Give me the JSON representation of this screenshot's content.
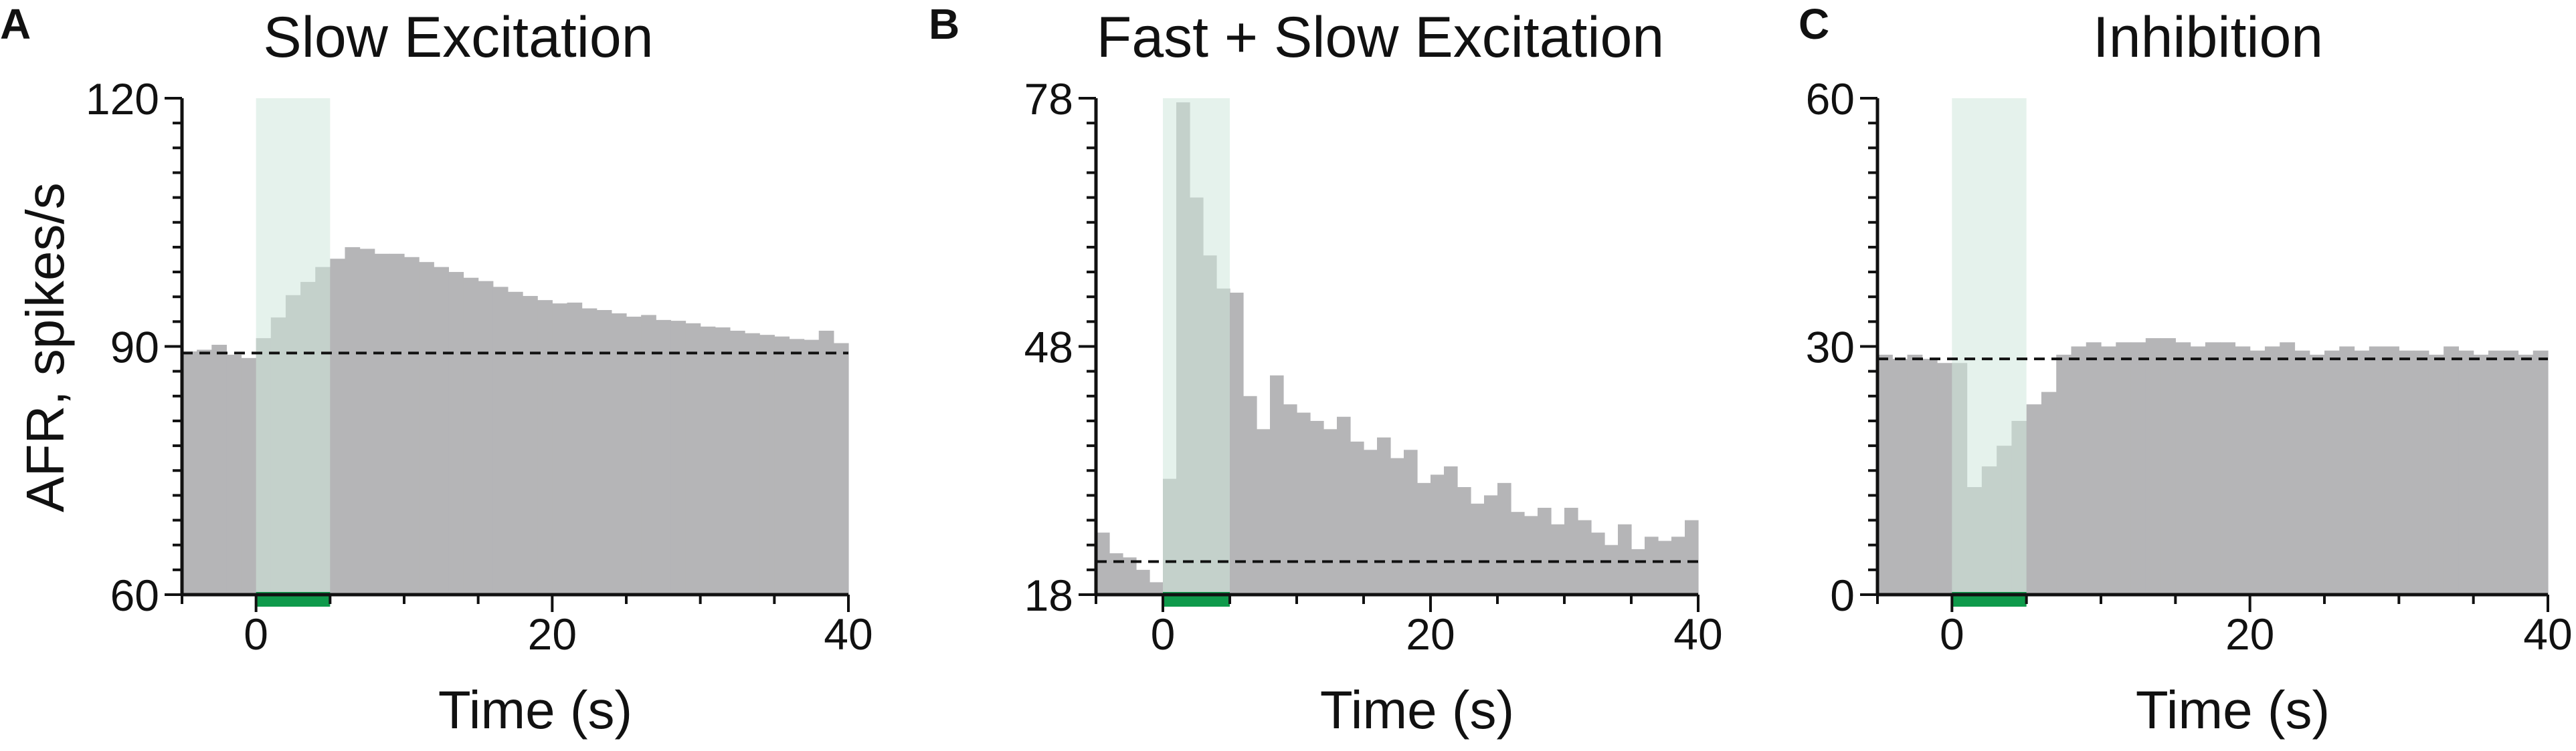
{
  "figure": {
    "shared_ylabel": "AFR, spikes/s",
    "colors": {
      "bars": "#b5b5b7",
      "stim_shade": "#cfe8dd",
      "stim_bar": "#0f9a4b",
      "baseline": "#111111",
      "axes": "#111111"
    }
  },
  "chart_data": [
    {
      "type": "bar",
      "panel": "A",
      "title": "Slow Excitation",
      "xlabel": "Time (s)",
      "ylabel": "AFR, spikes/s",
      "xlim": [
        -5,
        40
      ],
      "ylim": [
        60,
        120
      ],
      "xticks": [
        0,
        20,
        40
      ],
      "yticks": [
        60,
        90,
        120
      ],
      "bin_width": 1,
      "baseline": 89.2,
      "stimulus": [
        0,
        5
      ],
      "x": [
        -5,
        -4,
        -3,
        -2,
        -1,
        0,
        1,
        2,
        3,
        4,
        5,
        6,
        7,
        8,
        9,
        10,
        11,
        12,
        13,
        14,
        15,
        16,
        17,
        18,
        19,
        20,
        21,
        22,
        23,
        24,
        25,
        26,
        27,
        28,
        29,
        30,
        31,
        32,
        33,
        34,
        35,
        36,
        37,
        38,
        39
      ],
      "values": [
        89.4,
        89.6,
        90.2,
        89.0,
        88.6,
        91.0,
        93.5,
        96.2,
        97.8,
        99.6,
        100.6,
        102.0,
        101.8,
        101.2,
        101.2,
        100.8,
        100.2,
        99.6,
        99.0,
        98.3,
        97.9,
        97.2,
        96.6,
        96.1,
        95.6,
        95.2,
        95.3,
        94.6,
        94.4,
        94.0,
        93.6,
        93.8,
        93.2,
        93.1,
        92.8,
        92.4,
        92.3,
        91.9,
        91.6,
        91.4,
        91.2,
        90.9,
        90.8,
        91.9,
        90.4
      ]
    },
    {
      "type": "bar",
      "panel": "B",
      "title": "Fast + Slow Excitation",
      "xlabel": "Time (s)",
      "ylabel": "",
      "xlim": [
        -5,
        40
      ],
      "ylim": [
        18,
        78
      ],
      "xticks": [
        0,
        20,
        40
      ],
      "yticks": [
        18,
        48,
        78
      ],
      "bin_width": 1,
      "baseline": 22,
      "stimulus": [
        0,
        5
      ],
      "x": [
        -5,
        -4,
        -3,
        -2,
        -1,
        0,
        1,
        2,
        3,
        4,
        5,
        6,
        7,
        8,
        9,
        10,
        11,
        12,
        13,
        14,
        15,
        16,
        17,
        18,
        19,
        20,
        21,
        22,
        23,
        24,
        25,
        26,
        27,
        28,
        29,
        30,
        31,
        32,
        33,
        34,
        35,
        36,
        37,
        38,
        39
      ],
      "values": [
        25.5,
        23.0,
        22.5,
        21.0,
        19.5,
        32.0,
        77.5,
        66.0,
        59.0,
        55.0,
        54.5,
        42.0,
        38.0,
        44.5,
        41.0,
        40.0,
        39.0,
        38.0,
        39.5,
        36.5,
        35.5,
        37.0,
        34.5,
        35.5,
        31.5,
        32.5,
        33.5,
        31.0,
        29.0,
        30.0,
        31.5,
        28.0,
        27.5,
        28.5,
        26.5,
        28.5,
        27.0,
        25.5,
        24.0,
        26.5,
        23.5,
        25.0,
        24.5,
        25.0,
        27.0
      ]
    },
    {
      "type": "bar",
      "panel": "C",
      "title": "Inhibition",
      "xlabel": "Time (s)",
      "ylabel": "",
      "xlim": [
        -5,
        40
      ],
      "ylim": [
        0,
        60
      ],
      "xticks": [
        0,
        20,
        40
      ],
      "yticks": [
        0,
        30,
        60
      ],
      "bin_width": 1,
      "baseline": 28.5,
      "stimulus": [
        0,
        5
      ],
      "x": [
        -5,
        -4,
        -3,
        -2,
        -1,
        0,
        1,
        2,
        3,
        4,
        5,
        6,
        7,
        8,
        9,
        10,
        11,
        12,
        13,
        14,
        15,
        16,
        17,
        18,
        19,
        20,
        21,
        22,
        23,
        24,
        25,
        26,
        27,
        28,
        29,
        30,
        31,
        32,
        33,
        34,
        35,
        36,
        37,
        38,
        39
      ],
      "values": [
        29.0,
        28.5,
        29.0,
        28.5,
        28.0,
        28.0,
        13.0,
        15.5,
        18.0,
        21.0,
        23.0,
        24.5,
        29.0,
        30.0,
        30.5,
        30.0,
        30.5,
        30.5,
        31.0,
        31.0,
        30.5,
        30.0,
        30.5,
        30.5,
        30.0,
        29.5,
        30.0,
        30.5,
        29.5,
        29.0,
        29.5,
        30.0,
        29.5,
        30.0,
        30.0,
        29.5,
        29.5,
        29.0,
        30.0,
        29.5,
        29.0,
        29.5,
        29.5,
        29.0,
        29.5
      ]
    }
  ]
}
